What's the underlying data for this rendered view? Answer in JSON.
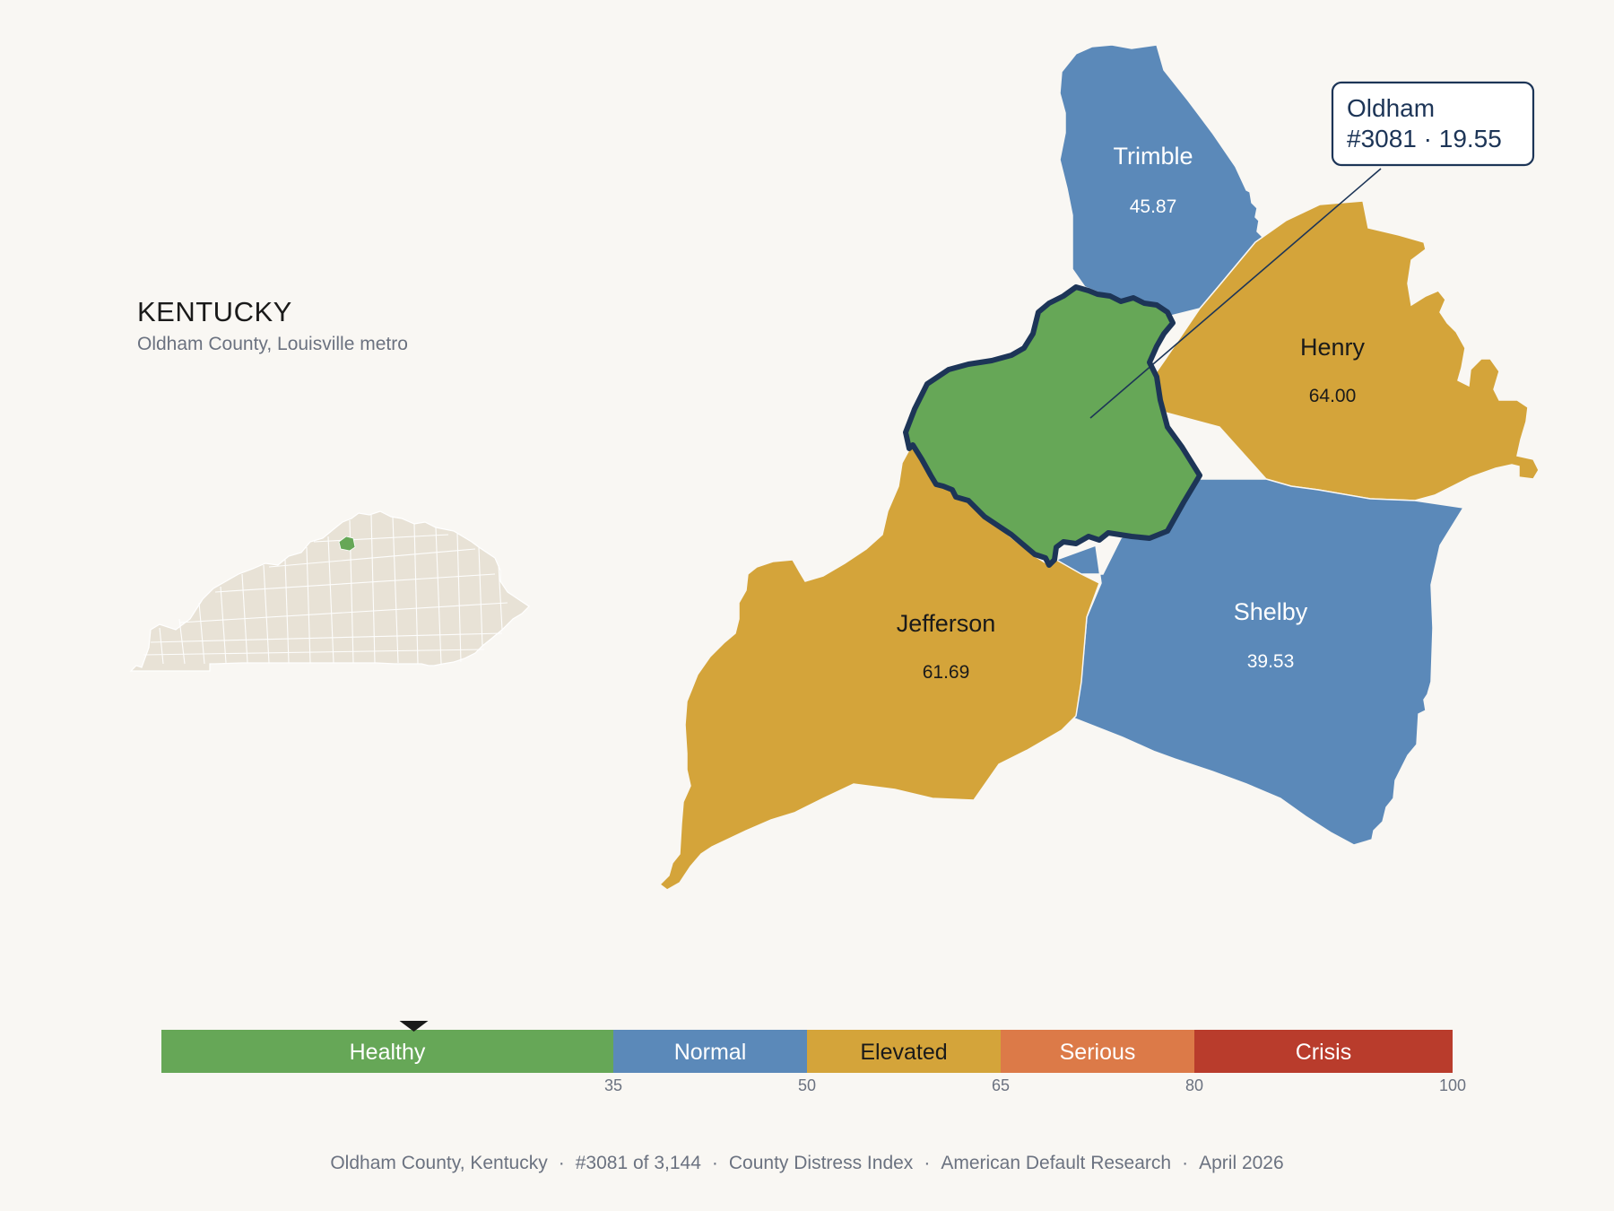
{
  "header": {
    "state": "KENTUCKY",
    "subtitle": "Oldham County, Louisville metro"
  },
  "callout": {
    "name": "Oldham",
    "detail": "#3081 · 19.55"
  },
  "counties": [
    {
      "key": "trimble",
      "name": "Trimble",
      "value": "45.87",
      "category": "Normal"
    },
    {
      "key": "henry",
      "name": "Henry",
      "value": "64.00",
      "category": "Elevated"
    },
    {
      "key": "jefferson",
      "name": "Jefferson",
      "value": "61.69",
      "category": "Elevated"
    },
    {
      "key": "shelby",
      "name": "Shelby",
      "value": "39.53",
      "category": "Normal"
    },
    {
      "key": "oldham",
      "name": "Oldham",
      "value": "19.55",
      "category": "Healthy",
      "highlighted": true
    }
  ],
  "legend": {
    "bands": [
      {
        "label": "Healthy",
        "from": 0,
        "to": 35,
        "color": "#66a757"
      },
      {
        "label": "Normal",
        "from": 35,
        "to": 50,
        "color": "#5b89b9"
      },
      {
        "label": "Elevated",
        "from": 50,
        "to": 65,
        "color": "#d4a43a"
      },
      {
        "label": "Serious",
        "from": 65,
        "to": 80,
        "color": "#dc7a48"
      },
      {
        "label": "Crisis",
        "from": 80,
        "to": 100,
        "color": "#b93c2c"
      }
    ],
    "ticks": [
      "35",
      "50",
      "65",
      "80",
      "100"
    ],
    "marker_value": 19.55
  },
  "colors": {
    "healthy": "#66a757",
    "normal": "#5b89b9",
    "elevated": "#d4a43a",
    "serious": "#dc7a48",
    "crisis": "#b93c2c",
    "outline": "#1d3557",
    "inset_fill": "#e8e2d6",
    "background": "#f9f7f3"
  },
  "footer": {
    "county": "Oldham County, Kentucky",
    "rank": "#3081 of 3,144",
    "index": "County Distress Index",
    "source": "American Default Research",
    "date": "April 2026"
  }
}
